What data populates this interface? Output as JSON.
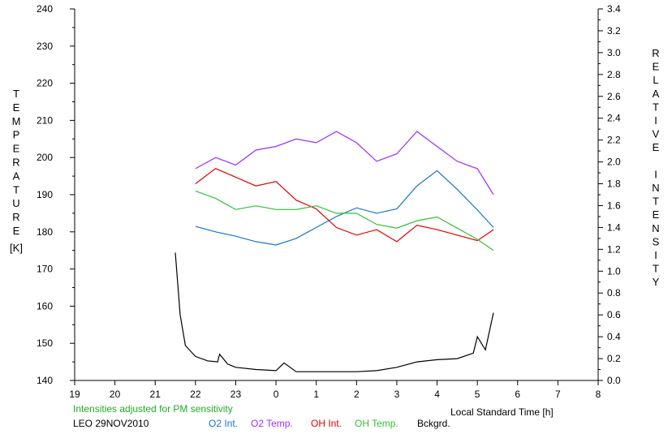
{
  "chart_data": {
    "type": "line",
    "station_date": "LEO 29NOV2010",
    "note": "Intensities adjusted for PM sensitivity",
    "xlabel": "Local Standard Time [h]",
    "ylabel_left": "TEMPERATURE",
    "ylabel_left_unit": "[K]",
    "ylabel_right": "RELATIVE INTENSITY",
    "xlim": [
      19,
      32
    ],
    "x_tick_labels": [
      "19",
      "20",
      "21",
      "22",
      "23",
      "0",
      "1",
      "2",
      "3",
      "4",
      "5",
      "6",
      "7",
      "8"
    ],
    "ylim_left": [
      140,
      240
    ],
    "y_left_ticks": [
      "140",
      "150",
      "160",
      "170",
      "180",
      "190",
      "200",
      "210",
      "220",
      "230",
      "240"
    ],
    "ylim_right": [
      0.0,
      3.4
    ],
    "y_right_ticks": [
      "0.0",
      "0.2",
      "0.4",
      "0.6",
      "0.8",
      "1.0",
      "1.2",
      "1.4",
      "1.6",
      "1.8",
      "2.0",
      "2.2",
      "2.4",
      "2.6",
      "2.8",
      "3.0",
      "3.2",
      "3.4"
    ],
    "grid": false,
    "colors": {
      "o2_int": "#1874cd",
      "o2_temp": "#9b30ff",
      "oh_int": "#e00000",
      "oh_temp": "#33c033",
      "bckgrd": "#000000",
      "note": "#22aa22"
    },
    "series": [
      {
        "name": "O2 Int.",
        "axis": "right",
        "x": [
          22.0,
          22.5,
          23.0,
          23.5,
          24.0,
          24.5,
          25.0,
          25.5,
          26.0,
          26.5,
          27.0,
          27.5,
          28.0,
          28.5,
          29.0,
          29.4
        ],
        "y": [
          1.41,
          1.36,
          1.32,
          1.27,
          1.24,
          1.3,
          1.4,
          1.5,
          1.58,
          1.53,
          1.57,
          1.78,
          1.92,
          1.75,
          1.56,
          1.4
        ]
      },
      {
        "name": "O2 Temp.",
        "axis": "left",
        "x": [
          22.0,
          22.5,
          23.0,
          23.5,
          24.0,
          24.5,
          25.0,
          25.5,
          26.0,
          26.5,
          27.0,
          27.5,
          28.0,
          28.5,
          29.0,
          29.4
        ],
        "y": [
          197,
          200,
          198,
          202,
          203,
          205,
          204,
          207,
          204,
          199,
          201,
          207,
          203,
          199,
          197,
          190
        ]
      },
      {
        "name": "OH Int.",
        "axis": "right",
        "x": [
          22.0,
          22.5,
          23.0,
          23.5,
          24.0,
          24.5,
          25.0,
          25.5,
          26.0,
          26.5,
          27.0,
          27.5,
          28.0,
          28.5,
          29.0,
          29.4
        ],
        "y": [
          1.8,
          1.94,
          1.86,
          1.78,
          1.82,
          1.65,
          1.57,
          1.4,
          1.33,
          1.38,
          1.27,
          1.42,
          1.38,
          1.33,
          1.28,
          1.38
        ]
      },
      {
        "name": "OH Temp.",
        "axis": "left",
        "x": [
          22.0,
          22.5,
          23.0,
          23.5,
          24.0,
          24.5,
          25.0,
          25.5,
          26.0,
          26.5,
          27.0,
          27.5,
          28.0,
          28.5,
          29.0,
          29.4
        ],
        "y": [
          191,
          189,
          186,
          187,
          186,
          186,
          187,
          185,
          185,
          182,
          181,
          183,
          184,
          181,
          178,
          175
        ]
      },
      {
        "name": "Bckgrd.",
        "axis": "right",
        "x": [
          21.5,
          21.62,
          21.75,
          22.0,
          22.3,
          22.55,
          22.6,
          22.8,
          23.0,
          23.5,
          24.0,
          24.2,
          24.5,
          25.0,
          25.5,
          26.0,
          26.5,
          27.0,
          27.5,
          28.0,
          28.5,
          28.9,
          29.0,
          29.2,
          29.4
        ],
        "y": [
          1.17,
          0.6,
          0.32,
          0.22,
          0.18,
          0.17,
          0.24,
          0.15,
          0.12,
          0.1,
          0.09,
          0.16,
          0.08,
          0.08,
          0.08,
          0.08,
          0.09,
          0.12,
          0.17,
          0.19,
          0.2,
          0.25,
          0.4,
          0.28,
          0.62
        ]
      }
    ]
  }
}
